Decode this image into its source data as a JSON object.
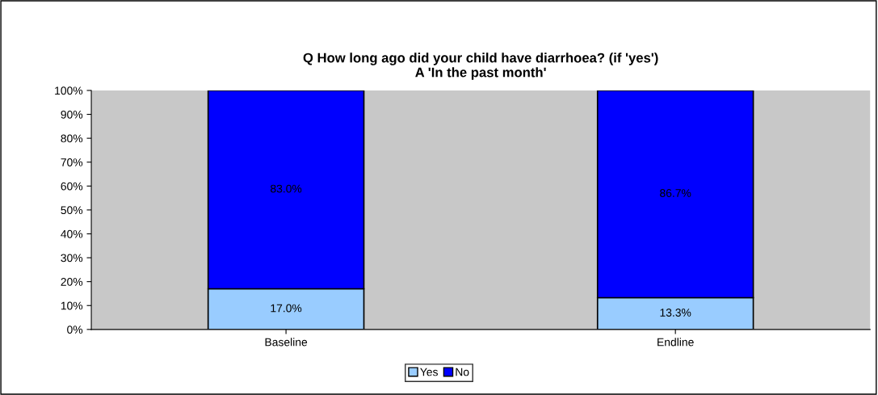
{
  "chart_data": {
    "type": "bar",
    "title": "Q How long ago did your child have diarrhoea? (if 'yes')\nA 'In the past month'",
    "categories": [
      "Baseline",
      "Endline"
    ],
    "stacked": true,
    "series": [
      {
        "name": "Yes",
        "color": "#99ccff",
        "values": [
          17.0,
          13.3
        ],
        "value_labels": [
          "17.0%",
          "13.3%"
        ]
      },
      {
        "name": "No",
        "color": "#0000ff",
        "values": [
          83.0,
          86.7
        ],
        "value_labels": [
          "83.0%",
          "86.7%"
        ]
      }
    ],
    "ylim": [
      0,
      100
    ],
    "yticks": [
      {
        "value": 0,
        "label": "0%"
      },
      {
        "value": 10,
        "label": "10%"
      },
      {
        "value": 20,
        "label": "20%"
      },
      {
        "value": 30,
        "label": "30%"
      },
      {
        "value": 40,
        "label": "40%"
      },
      {
        "value": 50,
        "label": "50%"
      },
      {
        "value": 60,
        "label": "60%"
      },
      {
        "value": 70,
        "label": "70%"
      },
      {
        "value": 80,
        "label": "80%"
      },
      {
        "value": 90,
        "label": "90%"
      },
      {
        "value": 100,
        "label": "100%"
      }
    ],
    "grid": false,
    "legend": "bottom"
  }
}
